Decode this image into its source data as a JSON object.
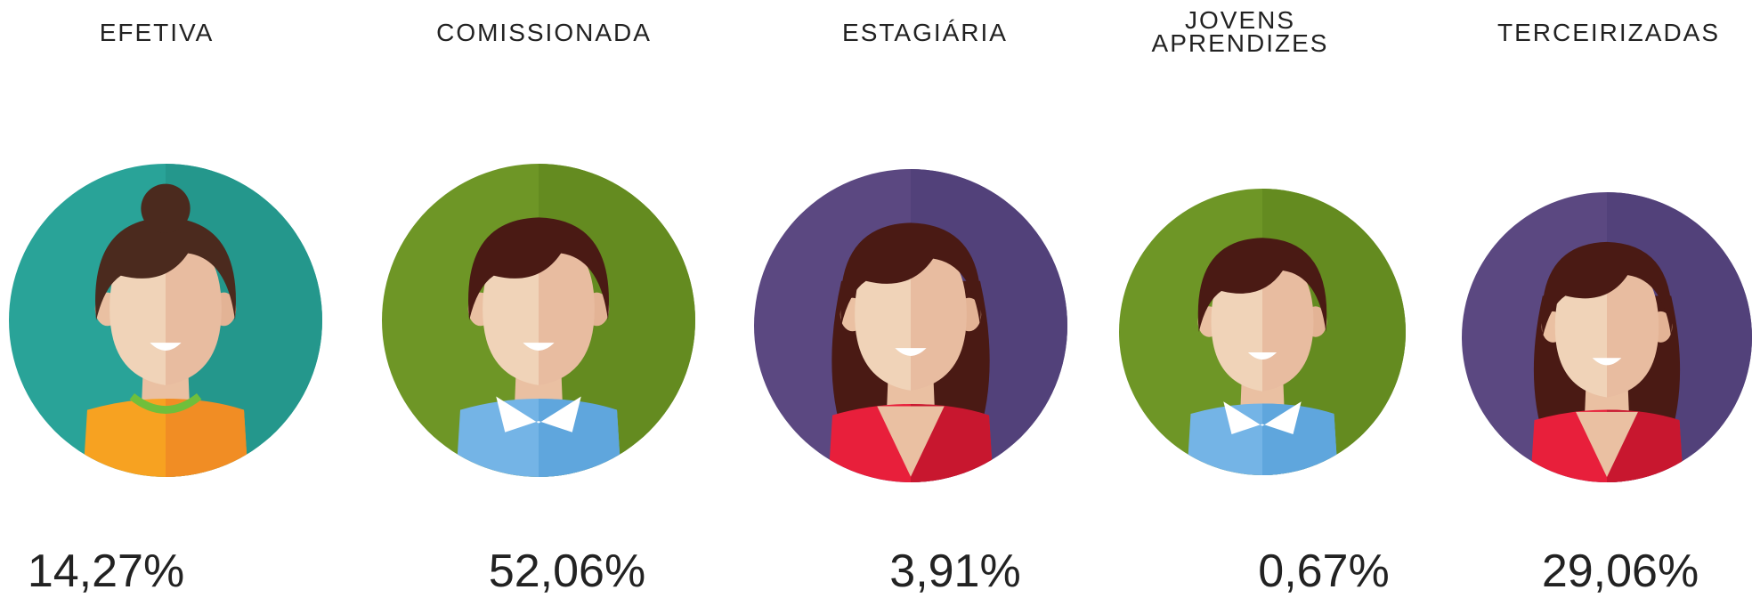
{
  "items": [
    {
      "label": "EFETIVA",
      "value": "14,27%"
    },
    {
      "label": "COMISSIONADA",
      "value": "52,06%"
    },
    {
      "label": "ESTAGIÁRIA",
      "value": "3,91%"
    },
    {
      "label": "JOVENS APRENDIZES",
      "value": "0,67%"
    },
    {
      "label": "TERCEIRIZADAS",
      "value": "29,06%"
    }
  ]
}
